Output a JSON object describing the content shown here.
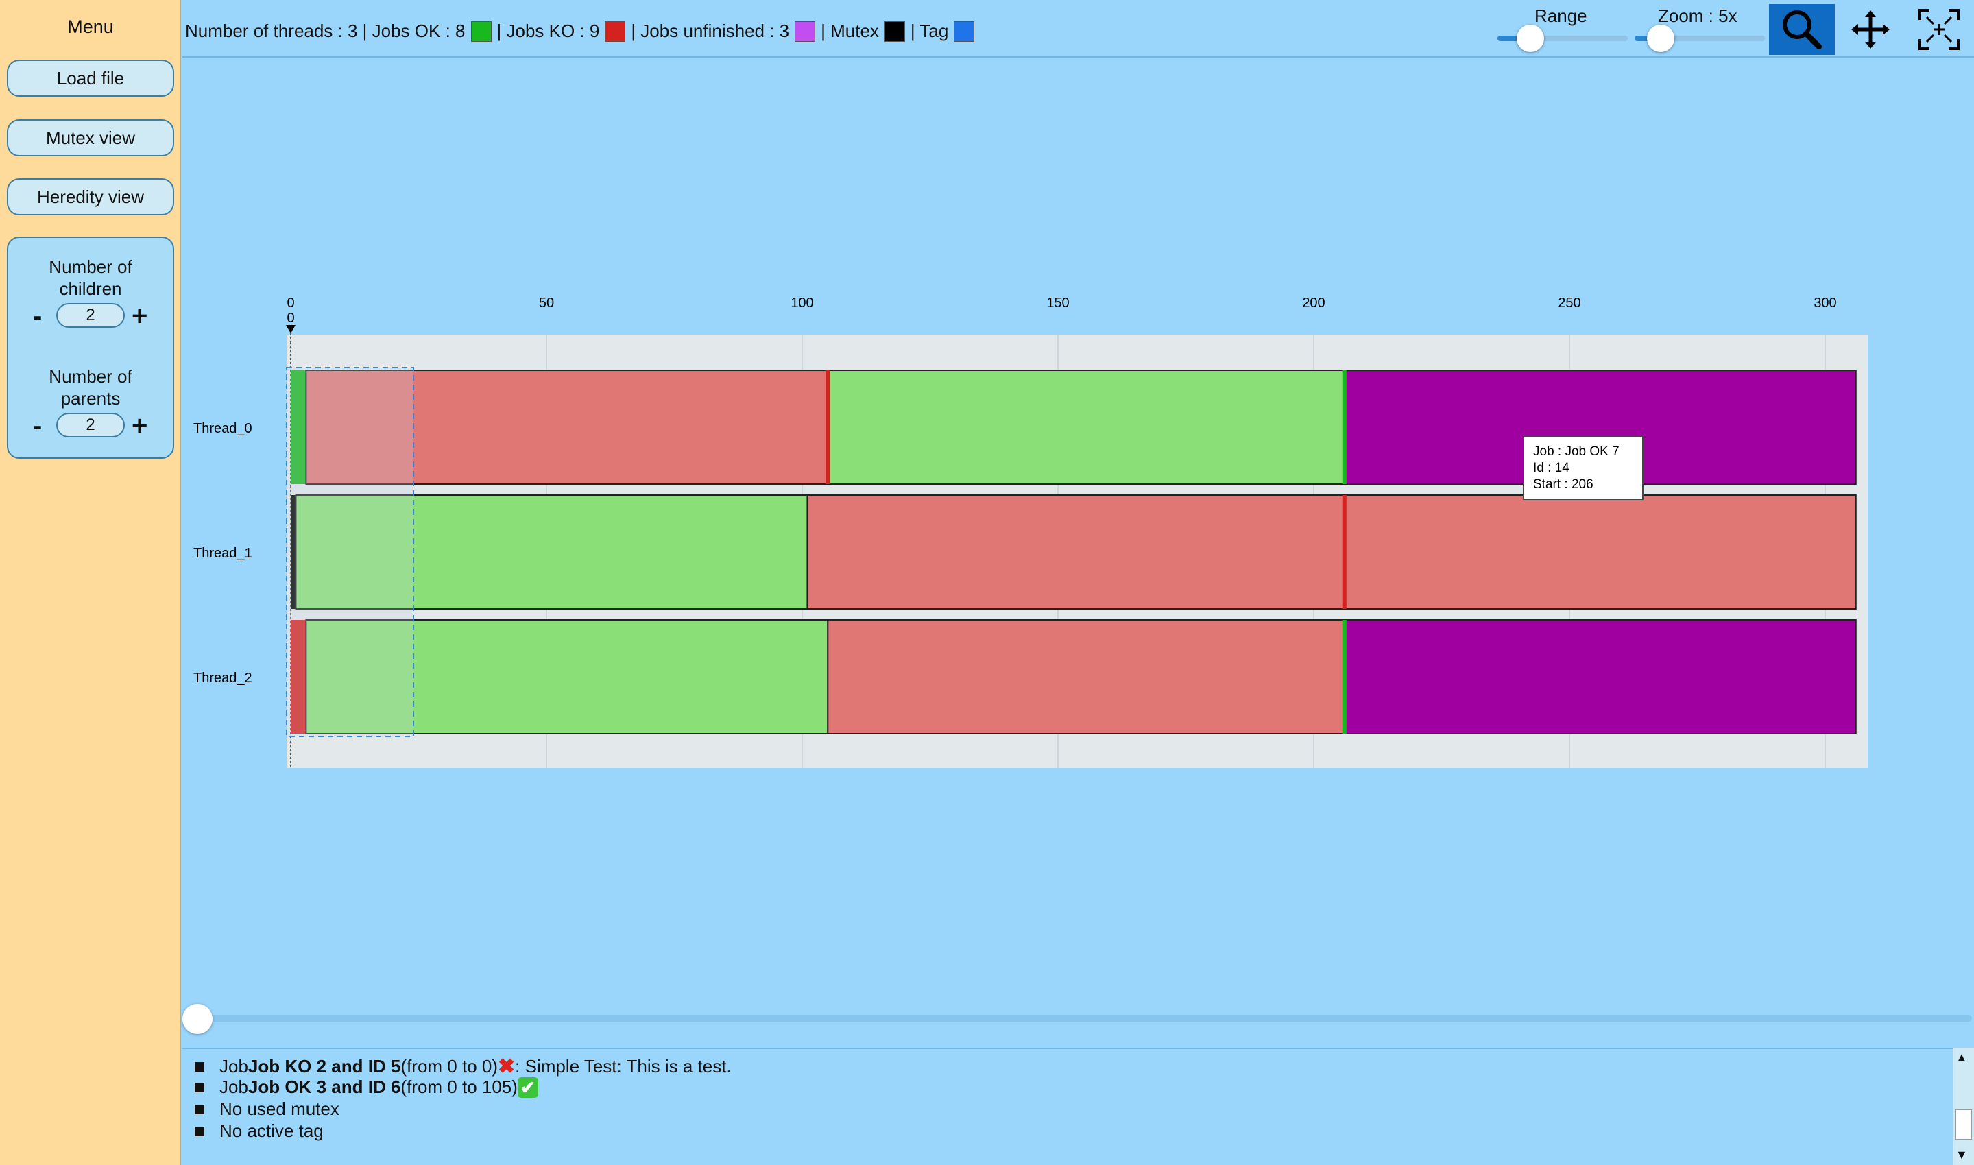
{
  "sidebar": {
    "title": "Menu",
    "buttons": {
      "load_file": "Load file",
      "mutex_view": "Mutex view",
      "heredity_view": "Heredity view"
    },
    "children_label": [
      "Number of",
      "children"
    ],
    "children_value": "2",
    "parents_label": [
      "Number of",
      "parents"
    ],
    "parents_value": "2",
    "minus": "-",
    "plus": "+"
  },
  "header": {
    "threads_text": "Number of threads : 3 | Jobs OK : 8",
    "ko_text": "| Jobs KO : 9",
    "unfinished_text": "| Jobs unfinished : 3",
    "mutex_text": "| Mutex",
    "tag_text": "| Tag",
    "range_label": "Range",
    "zoom_label": "Zoom : 5x",
    "range_level": 0.25,
    "zoom_level": 0.2
  },
  "colors": {
    "ok": "#8ae077",
    "ok_border": "#18b81f",
    "ko": "#e07774",
    "ko_border": "#d6221f",
    "unfinished": "#a000a0",
    "unfinished_swatch": "#c24ef2",
    "mutex": "#000000",
    "tag": "#1f74e8",
    "tool_active": "#0f6cc2"
  },
  "chart_data": {
    "type": "gantt",
    "x_ticks": [
      0,
      50,
      100,
      150,
      200,
      250,
      300
    ],
    "xlim": [
      0,
      306
    ],
    "cursor_label": "0",
    "threads": [
      "Thread_0",
      "Thread_1",
      "Thread_2"
    ],
    "jobs": [
      {
        "thread": 0,
        "start": 0,
        "end": 3,
        "status": "ok"
      },
      {
        "thread": 0,
        "start": 3,
        "end": 105,
        "status": "ko"
      },
      {
        "thread": 0,
        "start": 105,
        "end": 206,
        "status": "ok"
      },
      {
        "thread": 0,
        "start": 206,
        "end": 306,
        "status": "unfinished"
      },
      {
        "thread": 1,
        "start": 0,
        "end": 1,
        "status": "mutex"
      },
      {
        "thread": 1,
        "start": 1,
        "end": 101,
        "status": "ok"
      },
      {
        "thread": 1,
        "start": 101,
        "end": 306,
        "status": "ko"
      },
      {
        "thread": 2,
        "start": 0,
        "end": 3,
        "status": "ko"
      },
      {
        "thread": 2,
        "start": 3,
        "end": 105,
        "status": "ok"
      },
      {
        "thread": 2,
        "start": 105,
        "end": 206,
        "status": "ko"
      },
      {
        "thread": 2,
        "start": 206,
        "end": 306,
        "status": "unfinished"
      }
    ],
    "markers": [
      {
        "thread": 0,
        "at": 105,
        "status": "ko"
      },
      {
        "thread": 0,
        "at": 206,
        "status": "ok"
      },
      {
        "thread": 1,
        "at": 206,
        "status": "ko"
      },
      {
        "thread": 2,
        "at": 206,
        "status": "ok"
      }
    ],
    "selection": {
      "start": 0,
      "end": 24
    },
    "tooltip": [
      "Job : Job OK 7",
      "Id : 14",
      "Start : 206"
    ]
  },
  "log": {
    "line1": {
      "prefix": "Job ",
      "bold": "Job KO 2 and ID 5",
      "range": " (from 0 to 0) ",
      "icon": "✖",
      "tail": " : Simple Test: This is a test."
    },
    "line2": {
      "prefix": "Job ",
      "bold": "Job OK 3 and ID 6",
      "range": " (from 0 to 105) ",
      "icon": "✔"
    },
    "line3": "No used mutex",
    "line4": "No active tag"
  },
  "icons": {
    "zoom_tool": "magnifier-icon",
    "pan_tool": "move-arrows-icon",
    "fit_tool": "fit-screen-icon"
  }
}
